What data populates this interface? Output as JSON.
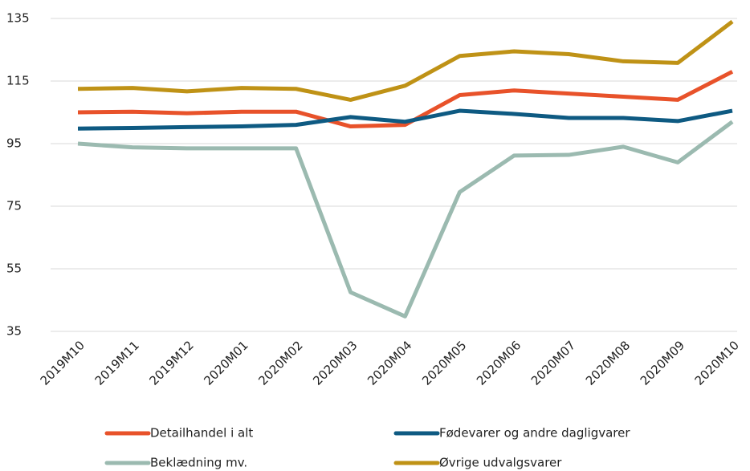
{
  "chart_data": {
    "type": "line",
    "categories": [
      "2019M10",
      "2019M11",
      "2019M12",
      "2020M01",
      "2020M02",
      "2020M03",
      "2020M04",
      "2020M05",
      "2020M06",
      "2020M07",
      "2020M08",
      "2020M09",
      "2020M10"
    ],
    "series": [
      {
        "name": "Detailhandel i alt",
        "color": "#e8522a",
        "values": [
          105,
          105.2,
          104.7,
          105.2,
          105.2,
          100.5,
          101,
          110.5,
          112,
          111,
          110,
          109,
          118
        ]
      },
      {
        "name": "Fødevarer og andre dagligvarer",
        "color": "#0e5a82",
        "values": [
          99.8,
          100,
          100.3,
          100.5,
          101,
          103.5,
          102,
          105.5,
          104.5,
          103.2,
          103.2,
          102.2,
          105.5
        ]
      },
      {
        "name": "Beklædning mv.",
        "color": "#9bbab0",
        "values": [
          95,
          93.8,
          93.5,
          93.5,
          93.5,
          47.5,
          39.8,
          79.5,
          91.2,
          91.4,
          94,
          89,
          102
        ]
      },
      {
        "name": "Øvrige udvalgsvarer",
        "color": "#bf9216",
        "values": [
          112.5,
          112.8,
          111.7,
          112.8,
          112.5,
          109,
          113.5,
          123,
          124.5,
          123.6,
          121.3,
          120.8,
          134
        ]
      }
    ],
    "ylim": [
      35,
      135
    ],
    "yticks": [
      35,
      55,
      75,
      95,
      115,
      135
    ],
    "grid": true
  }
}
